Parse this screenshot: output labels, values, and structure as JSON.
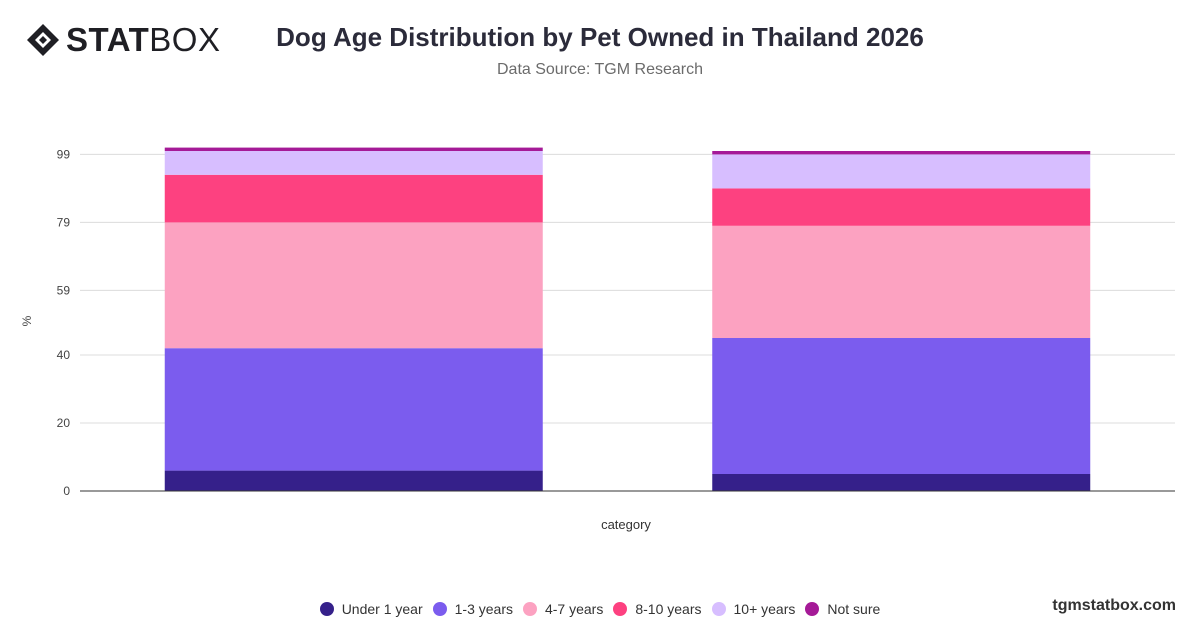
{
  "brand": {
    "strong": "STAT",
    "light": "BOX"
  },
  "watermark": "tgmstatbox.com",
  "chart_data": {
    "type": "bar",
    "stacked": true,
    "title": "Dog Age Distribution by Pet Owned in Thailand 2026",
    "subtitle": "Data Source: TGM Research",
    "xlabel": "category",
    "ylabel": "%",
    "categories": [
      "",
      ""
    ],
    "ylim": [
      0,
      100
    ],
    "yticks": [
      0,
      20,
      40,
      59,
      79,
      99
    ],
    "grid": true,
    "legend_position": "bottom",
    "series": [
      {
        "name": "Under 1 year",
        "color": "#35208a",
        "values": [
          6,
          5
        ]
      },
      {
        "name": "1-3 years",
        "color": "#7b5cee",
        "values": [
          36,
          40
        ]
      },
      {
        "name": "4-7 years",
        "color": "#fca2c1",
        "values": [
          37,
          33
        ]
      },
      {
        "name": "8-10 years",
        "color": "#fd4180",
        "values": [
          14,
          11
        ]
      },
      {
        "name": "10+ years",
        "color": "#d7beff",
        "values": [
          7,
          10
        ]
      },
      {
        "name": "Not sure",
        "color": "#a51a97",
        "values": [
          1,
          1
        ]
      }
    ]
  }
}
